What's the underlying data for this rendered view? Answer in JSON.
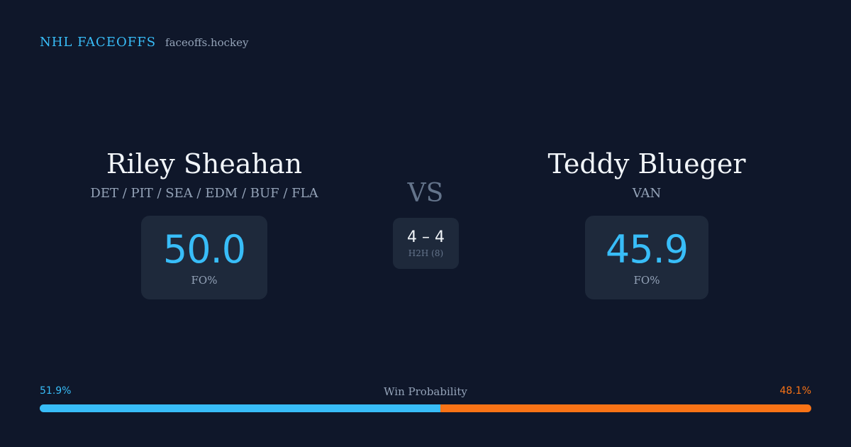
{
  "brand": {
    "title": "NHL FACEOFFS",
    "site": "faceoffs.hockey"
  },
  "matchup": {
    "vs_label": "VS",
    "player_left": {
      "name": "Riley Sheahan",
      "teams": "DET / PIT / SEA / EDM / BUF / FLA",
      "stat_value": "50.0",
      "stat_label": "FO%"
    },
    "player_right": {
      "name": "Teddy Blueger",
      "teams": "VAN",
      "stat_value": "45.9",
      "stat_label": "FO%"
    },
    "head_to_head": {
      "score": "4 – 4",
      "label": "H2H (8)"
    }
  },
  "win_probability": {
    "title": "Win Probability",
    "left_label": "51.9%",
    "right_label": "48.1%",
    "left_fraction": 0.519,
    "colors": {
      "left": "#38bdf8",
      "right": "#f97316"
    }
  }
}
